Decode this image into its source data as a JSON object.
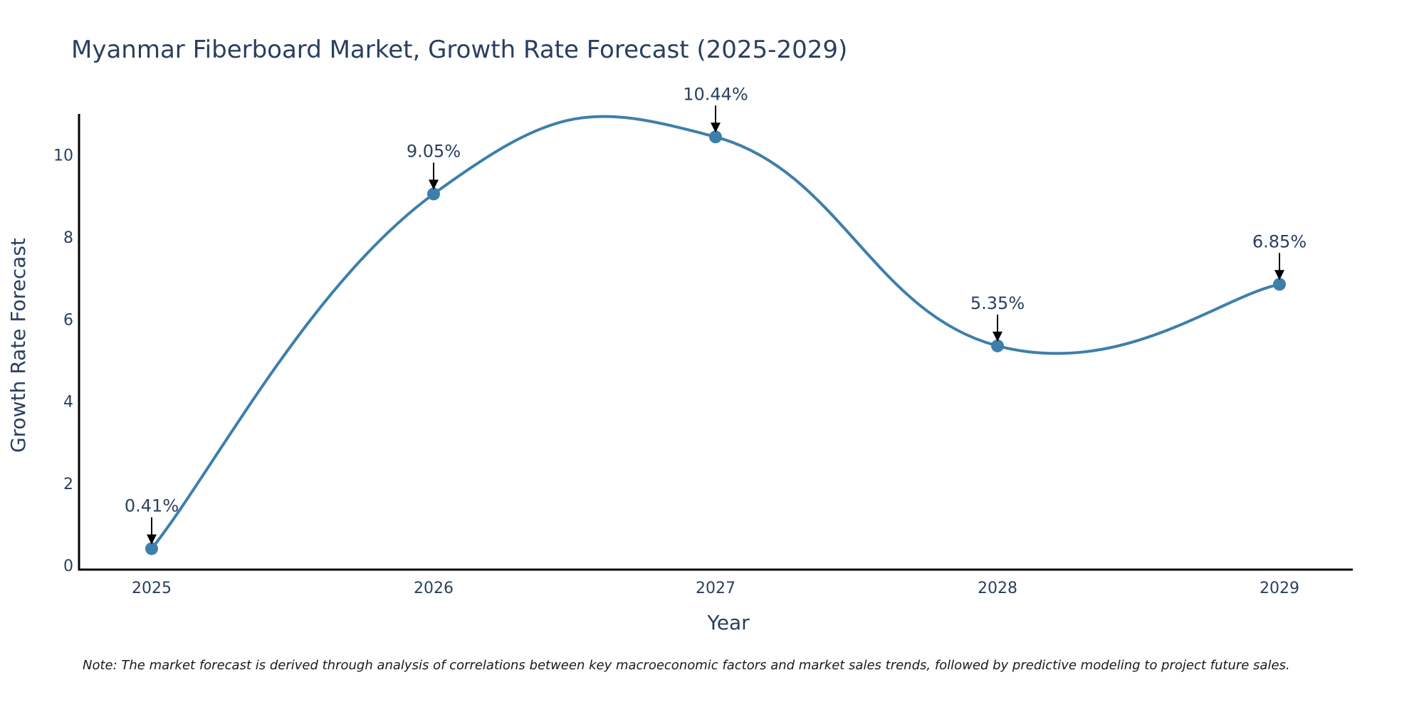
{
  "chart_data": {
    "type": "line",
    "title": "Myanmar Fiberboard Market, Growth Rate Forecast (2025-2029)",
    "xlabel": "Year",
    "ylabel": "Growth Rate Forecast",
    "categories": [
      "2025",
      "2026",
      "2027",
      "2028",
      "2029"
    ],
    "values": [
      0.41,
      9.05,
      10.44,
      5.35,
      6.85
    ],
    "data_labels": [
      "0.41%",
      "9.05%",
      "10.44%",
      "5.35%",
      "6.85%"
    ],
    "y_ticks": [
      0,
      2,
      4,
      6,
      8,
      10
    ],
    "y_tick_labels": [
      "0",
      "2",
      "4",
      "6",
      "8",
      "10"
    ],
    "ylim": [
      -0.1,
      11
    ],
    "line_shape": "spline",
    "grid": false,
    "line_color": "#3d7fab",
    "marker_color": "#3d7fab",
    "arrow_color": "#000000",
    "note": "Note: The market forecast is derived through analysis of correlations between key macroeconomic factors and market sales trends, followed by predictive modeling to project future sales."
  }
}
